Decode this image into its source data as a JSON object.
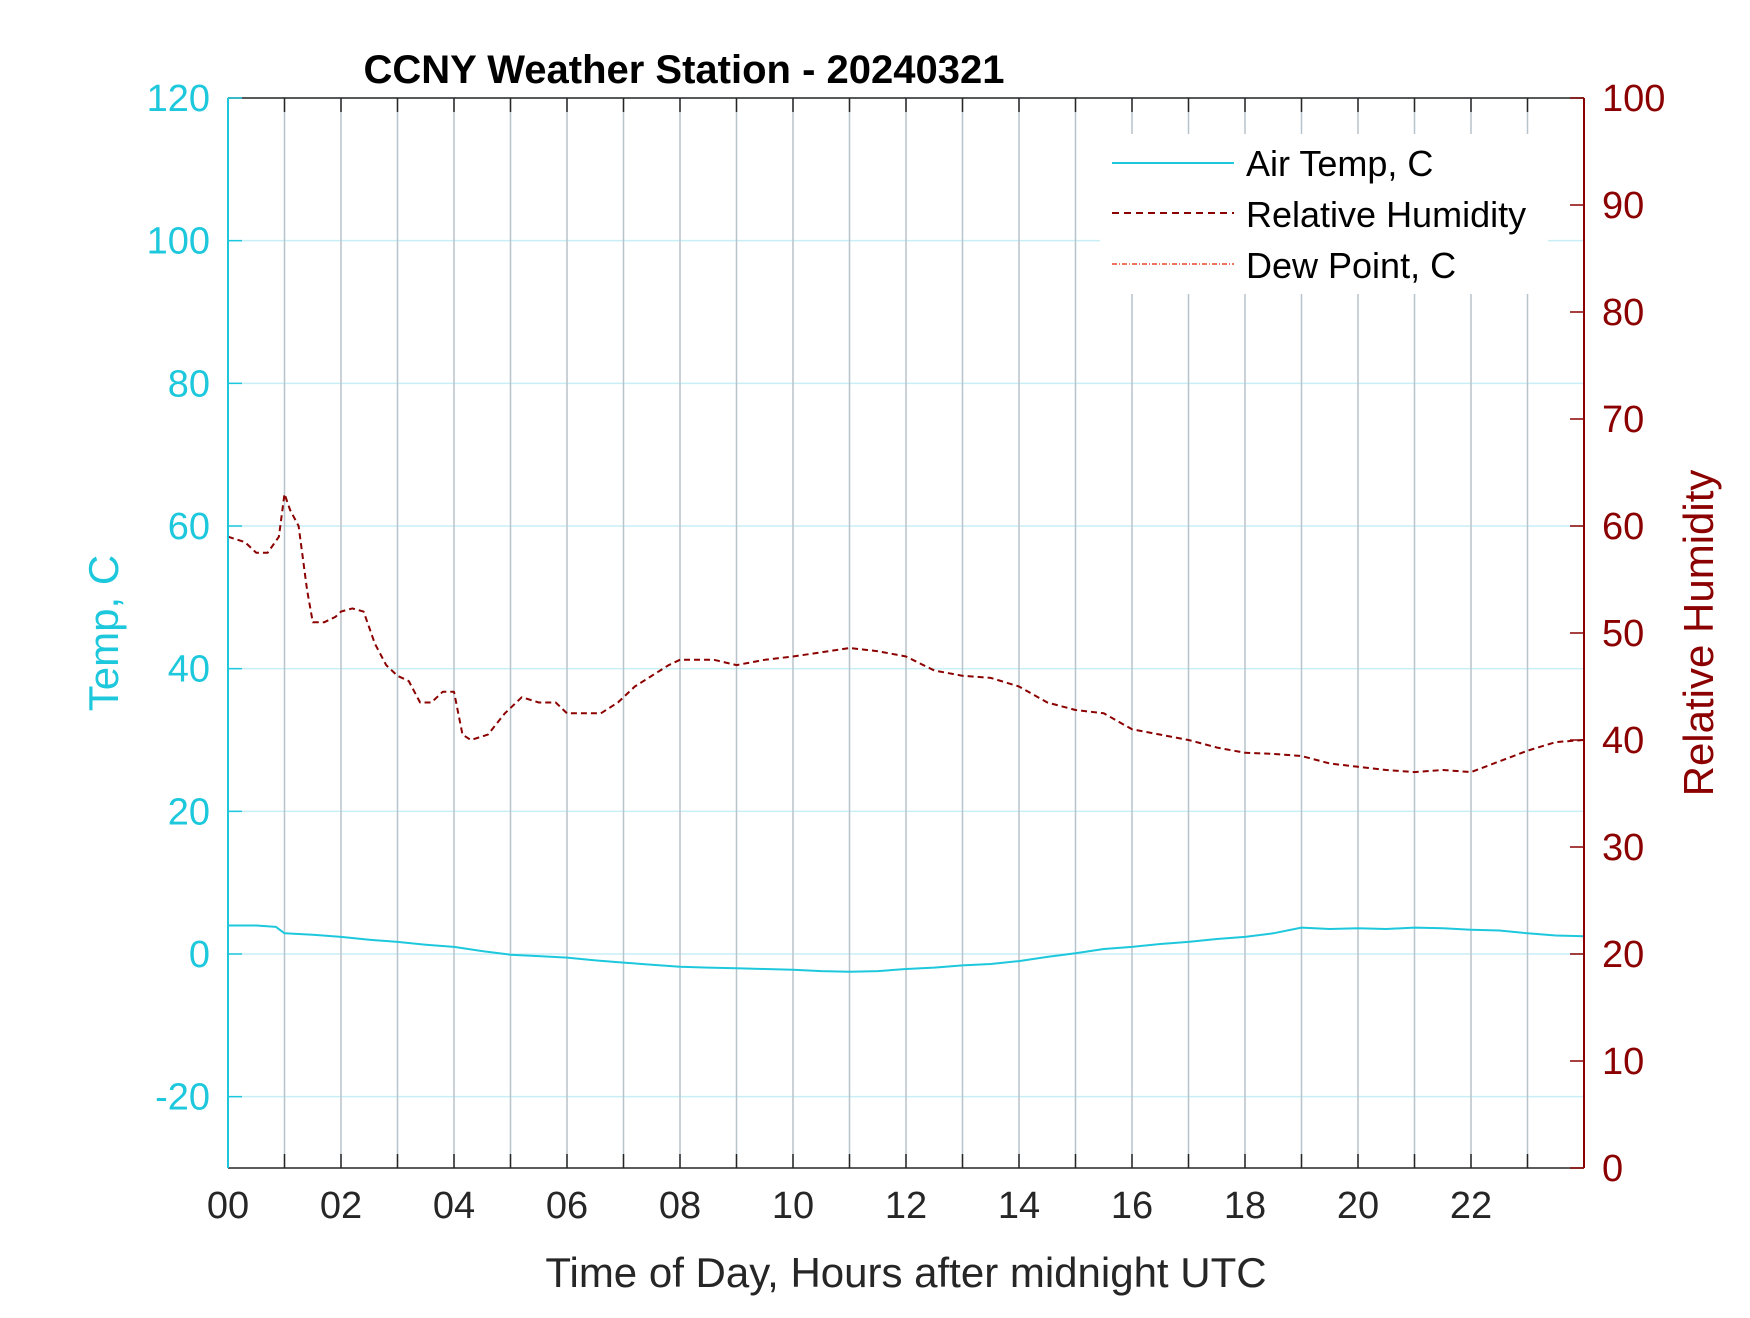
{
  "chart_data": {
    "type": "line",
    "title": "CCNY Weather Station - 20240321",
    "xlabel": "Time of Day, Hours after midnight UTC",
    "ylabel_left": "Temp, C",
    "ylabel_right": "Relative Humidity",
    "xlim": [
      0,
      24
    ],
    "ylim_left": [
      -30,
      120
    ],
    "ylim_right": [
      0,
      100
    ],
    "x_ticks": [
      0,
      2,
      4,
      6,
      8,
      10,
      12,
      14,
      16,
      18,
      20,
      22
    ],
    "x_tick_labels": [
      "00",
      "02",
      "04",
      "06",
      "08",
      "10",
      "12",
      "14",
      "16",
      "18",
      "20",
      "22"
    ],
    "y_left_ticks": [
      -20,
      0,
      20,
      40,
      60,
      80,
      100,
      120
    ],
    "y_right_ticks": [
      0,
      10,
      20,
      30,
      40,
      50,
      60,
      70,
      80,
      90,
      100
    ],
    "grid": true,
    "legend_position": "top-right",
    "colors": {
      "air_temp": "#1ec8dc",
      "humidity": "#8b0000",
      "dew_point": "#e8472c",
      "axis_left": "#1ec8dc",
      "axis_right": "#8b0000",
      "grid_vertical": "#b8c4cc",
      "grid_horizontal": "#c8eef6"
    },
    "series": [
      {
        "name": "Air Temp, C",
        "axis": "left",
        "style": "solid",
        "x": [
          0,
          0.5,
          0.85,
          1.0,
          1.5,
          2.0,
          2.5,
          3.0,
          3.5,
          4.0,
          4.5,
          5.0,
          5.5,
          6.0,
          6.5,
          7.0,
          7.5,
          8.0,
          8.5,
          9.0,
          9.5,
          10.0,
          10.5,
          11.0,
          11.5,
          12.0,
          12.5,
          13.0,
          13.5,
          14.0,
          14.5,
          15.0,
          15.5,
          16.0,
          16.5,
          17.0,
          17.5,
          18.0,
          18.5,
          19.0,
          19.5,
          20.0,
          20.5,
          21.0,
          21.5,
          22.0,
          22.5,
          23.0,
          23.5,
          24.0
        ],
        "y": [
          4.0,
          4.0,
          3.8,
          2.9,
          2.7,
          2.4,
          2.0,
          1.7,
          1.3,
          1.0,
          0.4,
          -0.1,
          -0.3,
          -0.5,
          -0.9,
          -1.2,
          -1.5,
          -1.8,
          -1.9,
          -2.0,
          -2.1,
          -2.2,
          -2.4,
          -2.5,
          -2.4,
          -2.1,
          -1.9,
          -1.6,
          -1.4,
          -1.0,
          -0.4,
          0.1,
          0.7,
          1.0,
          1.4,
          1.7,
          2.1,
          2.4,
          2.9,
          3.7,
          3.5,
          3.6,
          3.5,
          3.7,
          3.6,
          3.4,
          3.3,
          2.9,
          2.6,
          2.5
        ]
      },
      {
        "name": "Relative Humidity",
        "axis": "right",
        "style": "dashed",
        "x": [
          0,
          0.3,
          0.5,
          0.7,
          0.9,
          1.0,
          1.1,
          1.25,
          1.4,
          1.5,
          1.7,
          1.9,
          2.0,
          2.2,
          2.4,
          2.6,
          2.8,
          3.0,
          3.2,
          3.4,
          3.6,
          3.8,
          4.0,
          4.15,
          4.3,
          4.6,
          4.9,
          5.2,
          5.5,
          5.8,
          6.0,
          6.3,
          6.6,
          6.9,
          7.2,
          7.5,
          7.8,
          8.0,
          8.3,
          8.6,
          9.0,
          9.5,
          10.0,
          10.5,
          11.0,
          11.5,
          12.0,
          12.5,
          13.0,
          13.5,
          14.0,
          14.5,
          15.0,
          15.5,
          16.0,
          16.5,
          17.0,
          17.5,
          18.0,
          18.5,
          19.0,
          19.5,
          20.0,
          20.5,
          21.0,
          21.5,
          22.0,
          22.5,
          23.0,
          23.5,
          24.0
        ],
        "y": [
          59.0,
          58.5,
          57.5,
          57.5,
          59.0,
          63.0,
          61.5,
          60.0,
          54.0,
          51.0,
          51.0,
          51.5,
          52.0,
          52.3,
          52.0,
          49.0,
          47.0,
          46.0,
          45.5,
          43.5,
          43.5,
          44.5,
          44.5,
          40.5,
          40.0,
          40.5,
          42.5,
          44.0,
          43.5,
          43.5,
          42.5,
          42.5,
          42.5,
          43.5,
          45.0,
          46.0,
          47.0,
          47.5,
          47.5,
          47.5,
          47.0,
          47.5,
          47.8,
          48.2,
          48.6,
          48.3,
          47.8,
          46.5,
          46.0,
          45.8,
          45.0,
          43.5,
          42.8,
          42.5,
          41.0,
          40.5,
          40.0,
          39.3,
          38.8,
          38.7,
          38.5,
          37.8,
          37.5,
          37.2,
          37.0,
          37.2,
          37.0,
          38.0,
          39.0,
          39.8,
          40.0
        ]
      },
      {
        "name": "Dew Point, C",
        "axis": "left",
        "style": "dash-dot",
        "x": [],
        "y": []
      }
    ]
  }
}
